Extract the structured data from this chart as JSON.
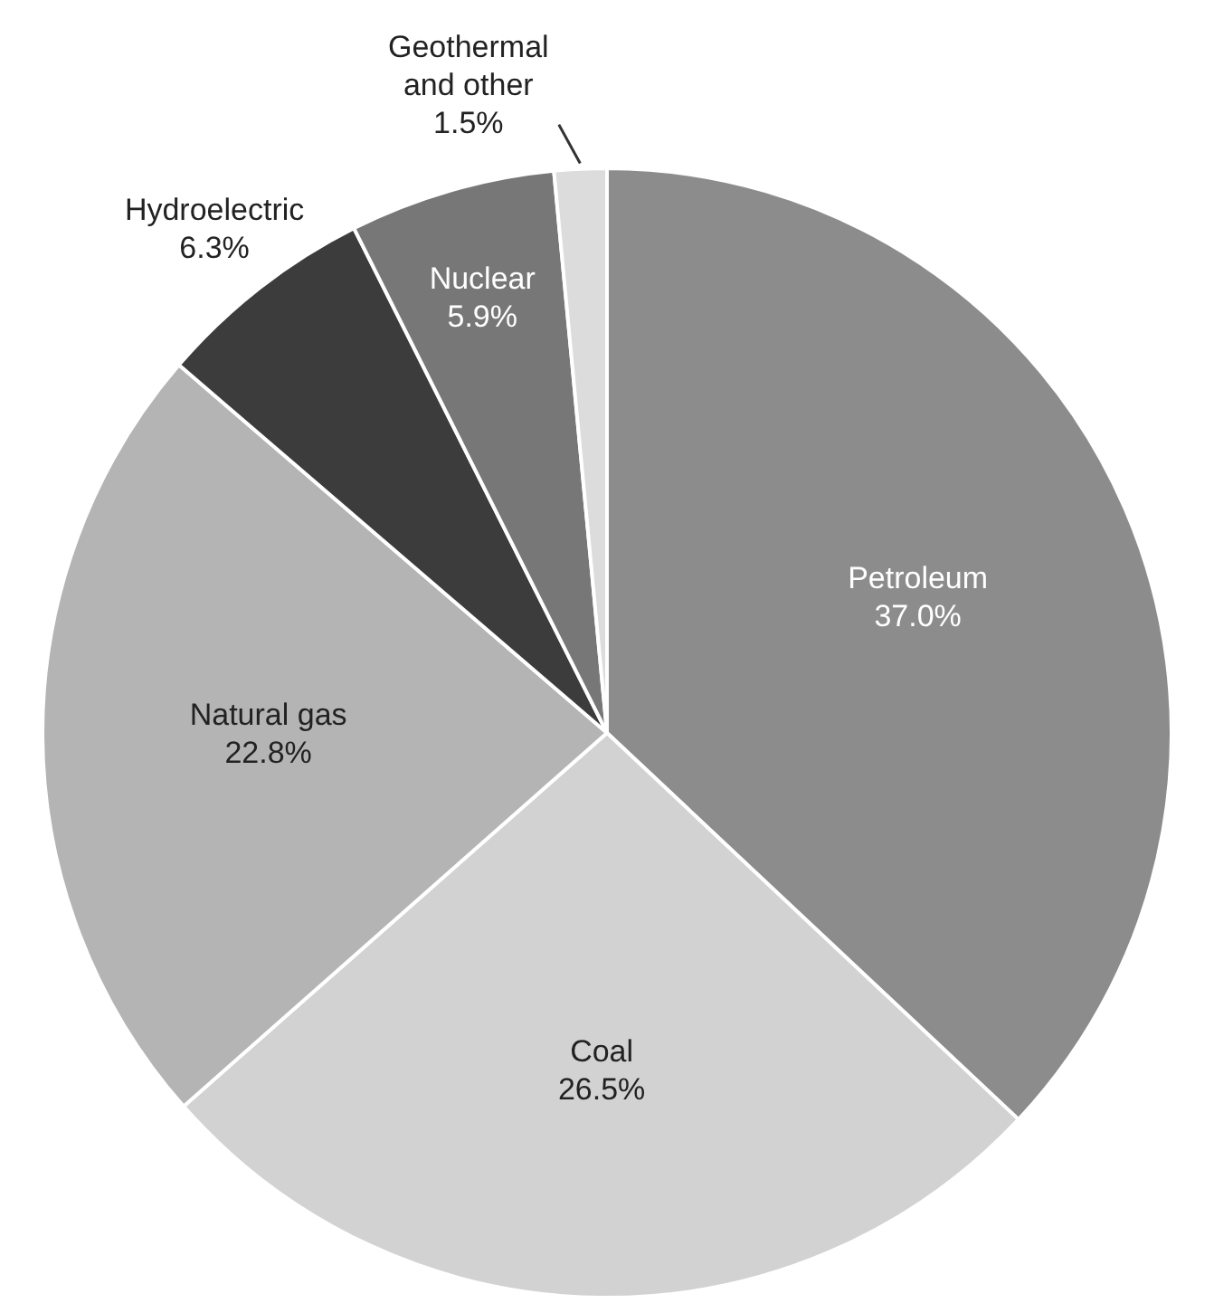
{
  "chart_data": {
    "type": "pie",
    "categories": [
      "Petroleum",
      "Coal",
      "Natural gas",
      "Hydroelectric",
      "Nuclear",
      "Geothermal and other"
    ],
    "values": [
      37.0,
      26.5,
      22.8,
      6.3,
      5.9,
      1.5
    ],
    "value_labels": [
      "37.0%",
      "26.5%",
      "22.8%",
      "6.3%",
      "5.9%",
      "1.5%"
    ],
    "colors": [
      "#8c8c8c",
      "#d2d2d2",
      "#b4b4b4",
      "#3c3c3c",
      "#777777",
      "#dcdcdc"
    ],
    "legend": false
  }
}
